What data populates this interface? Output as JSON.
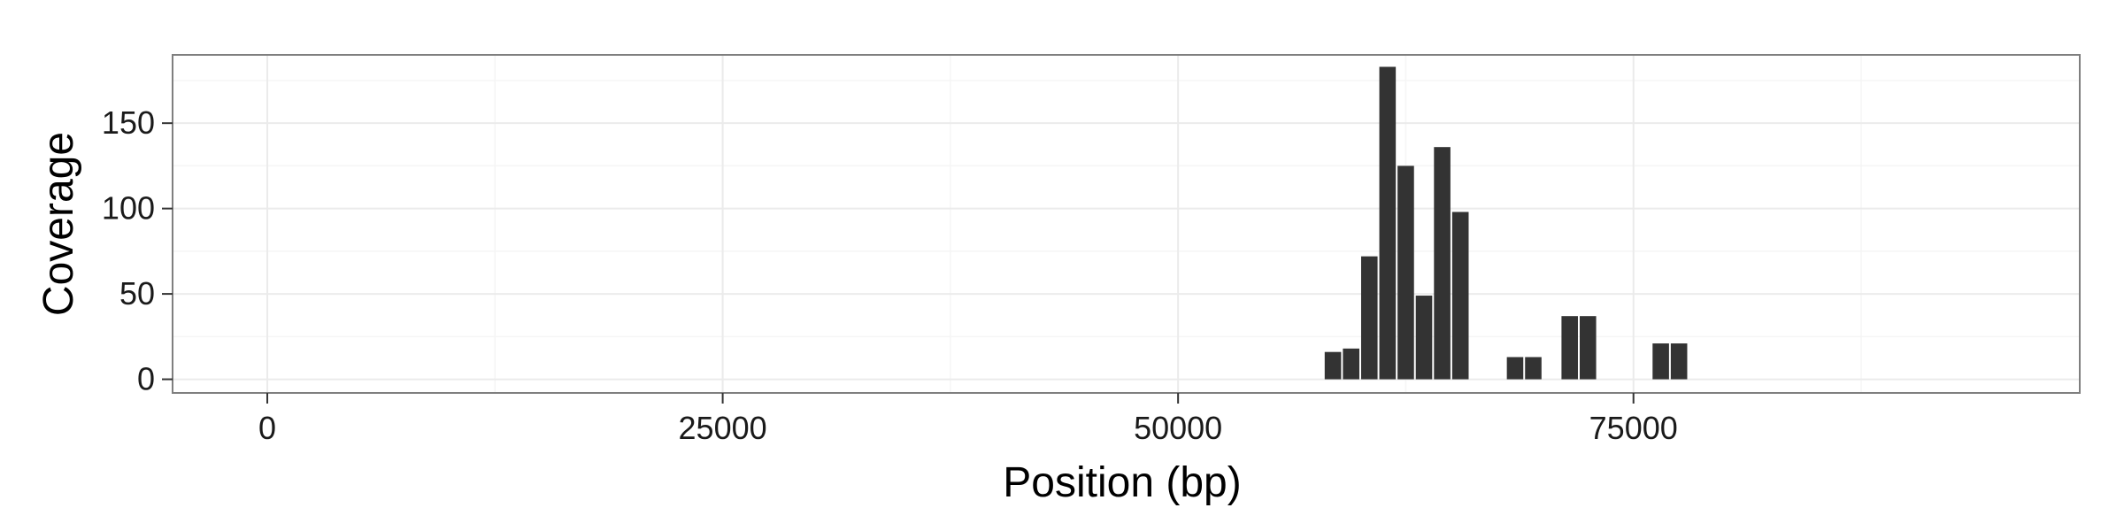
{
  "chart_data": {
    "type": "bar",
    "xlabel": "Position (bp)",
    "ylabel": "Coverage",
    "xlim": [
      -5200,
      99500
    ],
    "ylim": [
      -8,
      190
    ],
    "x_ticks": [
      0,
      25000,
      50000,
      75000
    ],
    "x_minor_ticks": [
      12500,
      37500,
      62500,
      87500
    ],
    "y_ticks": [
      0,
      50,
      100,
      150
    ],
    "y_minor_ticks": [
      25,
      75,
      125,
      175
    ],
    "x_tick_labels": [
      "0",
      "25000",
      "50000",
      "75000"
    ],
    "y_tick_labels": [
      "0",
      "50",
      "100",
      "150"
    ],
    "bin_width": 1000,
    "grid": true,
    "bar_color": "#333333",
    "panel_background": "#ffffff",
    "panel_border_color": "#7f7f7f",
    "grid_major_color": "#ebebeb",
    "grid_minor_color": "#f5f5f5",
    "bars": [
      {
        "x": 58500,
        "y": 16
      },
      {
        "x": 59500,
        "y": 18
      },
      {
        "x": 60500,
        "y": 72
      },
      {
        "x": 61500,
        "y": 183
      },
      {
        "x": 62500,
        "y": 125
      },
      {
        "x": 63500,
        "y": 49
      },
      {
        "x": 64500,
        "y": 136
      },
      {
        "x": 65500,
        "y": 98
      },
      {
        "x": 68500,
        "y": 13
      },
      {
        "x": 69500,
        "y": 13
      },
      {
        "x": 71500,
        "y": 37
      },
      {
        "x": 72500,
        "y": 37
      },
      {
        "x": 76500,
        "y": 21
      },
      {
        "x": 77500,
        "y": 21
      }
    ]
  }
}
